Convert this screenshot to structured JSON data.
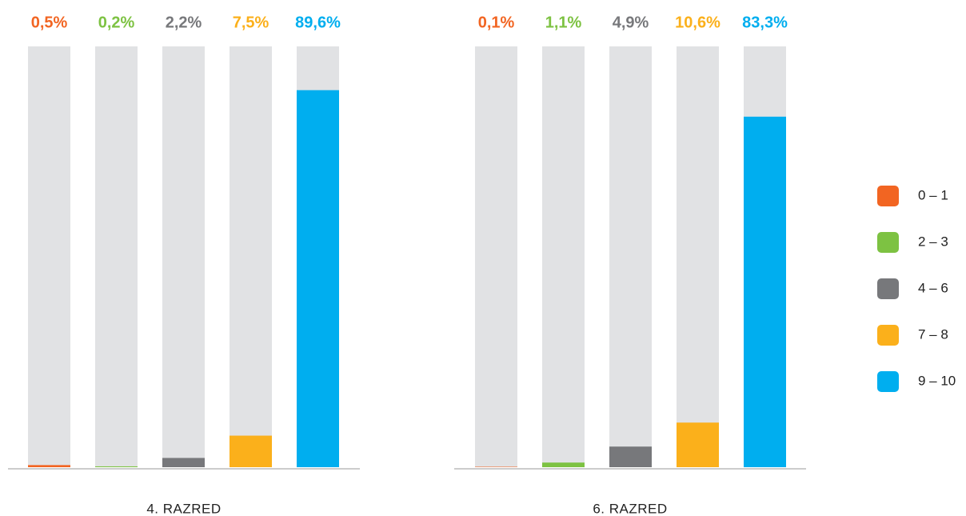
{
  "legend": [
    {
      "label": "0 – 1",
      "color": "#f26522"
    },
    {
      "label": "2 – 3",
      "color": "#7dc242"
    },
    {
      "label": "4 – 6",
      "color": "#77787b"
    },
    {
      "label": "7 – 8",
      "color": "#fbb01b"
    },
    {
      "label": "9 – 10",
      "color": "#00aeef"
    }
  ],
  "chart_data": [
    {
      "type": "bar",
      "xlabel": "4. RAZRED",
      "values": [
        0.5,
        0.2,
        2.2,
        7.5,
        89.6
      ],
      "value_labels": [
        "0,5%",
        "0,2%",
        "2,2%",
        "7,5%",
        "89,6%"
      ],
      "ylim": [
        0,
        100
      ]
    },
    {
      "type": "bar",
      "xlabel": "6. RAZRED",
      "values": [
        0.1,
        1.1,
        4.9,
        10.6,
        83.3
      ],
      "value_labels": [
        "0,1%",
        "1,1%",
        "4,9%",
        "10,6%",
        "83,3%"
      ],
      "ylim": [
        0,
        100
      ]
    }
  ]
}
